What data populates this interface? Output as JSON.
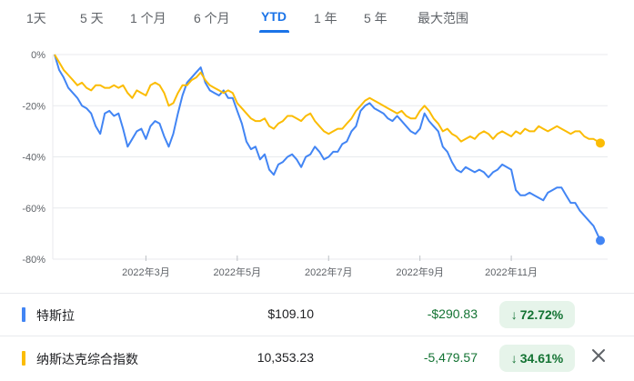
{
  "tabs": [
    {
      "label": "1天"
    },
    {
      "label": "5 天"
    },
    {
      "label": "1 个月"
    },
    {
      "label": "6 个月"
    },
    {
      "label": "YTD"
    },
    {
      "label": "1 年"
    },
    {
      "label": "5 年"
    },
    {
      "label": "最大范围"
    }
  ],
  "active_tab": "YTD",
  "chart_data": {
    "type": "line",
    "title": "",
    "xlabel": "",
    "ylabel": "",
    "x_tick_labels": [
      "2022年3月",
      "2022年5月",
      "2022年7月",
      "2022年9月",
      "2022年11月"
    ],
    "y_tick_labels": [
      "0%",
      "-20%",
      "-40%",
      "-60%",
      "-80%"
    ],
    "y_ticks": [
      0,
      -20,
      -40,
      -60,
      -80
    ],
    "ylim": [
      -80,
      0
    ],
    "x_months_range": [
      1,
      12.95
    ],
    "grid": "horizontal",
    "series": [
      {
        "name": "特斯拉",
        "color": "#4285f4",
        "points": [
          [
            1.0,
            0
          ],
          [
            1.1,
            -6
          ],
          [
            1.2,
            -9
          ],
          [
            1.3,
            -13
          ],
          [
            1.4,
            -15
          ],
          [
            1.5,
            -17
          ],
          [
            1.6,
            -20
          ],
          [
            1.7,
            -21
          ],
          [
            1.8,
            -23
          ],
          [
            1.9,
            -28
          ],
          [
            2.0,
            -31
          ],
          [
            2.1,
            -23
          ],
          [
            2.2,
            -22
          ],
          [
            2.3,
            -24
          ],
          [
            2.4,
            -23
          ],
          [
            2.5,
            -29
          ],
          [
            2.6,
            -36
          ],
          [
            2.7,
            -33
          ],
          [
            2.8,
            -30
          ],
          [
            2.9,
            -29
          ],
          [
            3.0,
            -33
          ],
          [
            3.1,
            -28
          ],
          [
            3.2,
            -26
          ],
          [
            3.3,
            -27
          ],
          [
            3.4,
            -32
          ],
          [
            3.5,
            -36
          ],
          [
            3.6,
            -31
          ],
          [
            3.7,
            -23
          ],
          [
            3.8,
            -16
          ],
          [
            3.9,
            -11
          ],
          [
            4.0,
            -9
          ],
          [
            4.1,
            -7
          ],
          [
            4.2,
            -5
          ],
          [
            4.3,
            -11
          ],
          [
            4.4,
            -14
          ],
          [
            4.5,
            -15
          ],
          [
            4.6,
            -16
          ],
          [
            4.7,
            -14
          ],
          [
            4.8,
            -17
          ],
          [
            4.9,
            -17
          ],
          [
            5.0,
            -22
          ],
          [
            5.1,
            -27
          ],
          [
            5.2,
            -34
          ],
          [
            5.3,
            -37
          ],
          [
            5.4,
            -36
          ],
          [
            5.5,
            -41
          ],
          [
            5.6,
            -39
          ],
          [
            5.7,
            -45
          ],
          [
            5.8,
            -47
          ],
          [
            5.9,
            -43
          ],
          [
            6.0,
            -42
          ],
          [
            6.1,
            -40
          ],
          [
            6.2,
            -39
          ],
          [
            6.3,
            -41
          ],
          [
            6.4,
            -44
          ],
          [
            6.5,
            -40
          ],
          [
            6.6,
            -39
          ],
          [
            6.7,
            -36
          ],
          [
            6.8,
            -38
          ],
          [
            6.9,
            -41
          ],
          [
            7.0,
            -40
          ],
          [
            7.1,
            -38
          ],
          [
            7.2,
            -38
          ],
          [
            7.3,
            -35
          ],
          [
            7.4,
            -34
          ],
          [
            7.5,
            -30
          ],
          [
            7.6,
            -28
          ],
          [
            7.7,
            -22
          ],
          [
            7.8,
            -20
          ],
          [
            7.9,
            -19
          ],
          [
            8.0,
            -21
          ],
          [
            8.1,
            -22
          ],
          [
            8.2,
            -23
          ],
          [
            8.3,
            -25
          ],
          [
            8.4,
            -26
          ],
          [
            8.5,
            -24
          ],
          [
            8.6,
            -26
          ],
          [
            8.7,
            -28
          ],
          [
            8.8,
            -30
          ],
          [
            8.9,
            -31
          ],
          [
            9.0,
            -29
          ],
          [
            9.1,
            -23
          ],
          [
            9.2,
            -26
          ],
          [
            9.3,
            -28
          ],
          [
            9.4,
            -30
          ],
          [
            9.5,
            -36
          ],
          [
            9.6,
            -38
          ],
          [
            9.7,
            -42
          ],
          [
            9.8,
            -45
          ],
          [
            9.9,
            -46
          ],
          [
            10.0,
            -44
          ],
          [
            10.1,
            -45
          ],
          [
            10.2,
            -46
          ],
          [
            10.3,
            -45
          ],
          [
            10.4,
            -46
          ],
          [
            10.5,
            -48
          ],
          [
            10.6,
            -46
          ],
          [
            10.7,
            -45
          ],
          [
            10.8,
            -43
          ],
          [
            10.9,
            -44
          ],
          [
            11.0,
            -45
          ],
          [
            11.1,
            -53
          ],
          [
            11.2,
            -55
          ],
          [
            11.3,
            -55
          ],
          [
            11.4,
            -54
          ],
          [
            11.5,
            -55
          ],
          [
            11.6,
            -56
          ],
          [
            11.7,
            -57
          ],
          [
            11.8,
            -54
          ],
          [
            11.9,
            -53
          ],
          [
            12.0,
            -52
          ],
          [
            12.1,
            -52
          ],
          [
            12.2,
            -55
          ],
          [
            12.3,
            -58
          ],
          [
            12.4,
            -58
          ],
          [
            12.5,
            -61
          ],
          [
            12.6,
            -63
          ],
          [
            12.7,
            -65
          ],
          [
            12.8,
            -67
          ],
          [
            12.95,
            -72.72
          ]
        ],
        "price": "$109.10",
        "change": "-$290.83",
        "percent": "72.72%",
        "direction": "down"
      },
      {
        "name": "纳斯达克综合指数",
        "color": "#fbbc04",
        "points": [
          [
            1.0,
            0
          ],
          [
            1.1,
            -3
          ],
          [
            1.2,
            -6
          ],
          [
            1.3,
            -8
          ],
          [
            1.4,
            -10
          ],
          [
            1.5,
            -12
          ],
          [
            1.6,
            -11
          ],
          [
            1.7,
            -13
          ],
          [
            1.8,
            -14
          ],
          [
            1.9,
            -12
          ],
          [
            2.0,
            -12
          ],
          [
            2.1,
            -13
          ],
          [
            2.2,
            -13
          ],
          [
            2.3,
            -12
          ],
          [
            2.4,
            -13
          ],
          [
            2.5,
            -12
          ],
          [
            2.6,
            -15
          ],
          [
            2.7,
            -17
          ],
          [
            2.8,
            -14
          ],
          [
            2.9,
            -15
          ],
          [
            3.0,
            -16
          ],
          [
            3.1,
            -12
          ],
          [
            3.2,
            -11
          ],
          [
            3.3,
            -12
          ],
          [
            3.4,
            -15
          ],
          [
            3.5,
            -20
          ],
          [
            3.6,
            -19
          ],
          [
            3.7,
            -15
          ],
          [
            3.8,
            -12
          ],
          [
            3.9,
            -12
          ],
          [
            4.0,
            -10
          ],
          [
            4.1,
            -9
          ],
          [
            4.2,
            -7
          ],
          [
            4.3,
            -10
          ],
          [
            4.4,
            -12
          ],
          [
            4.5,
            -13
          ],
          [
            4.6,
            -14
          ],
          [
            4.7,
            -15
          ],
          [
            4.8,
            -14
          ],
          [
            4.9,
            -15
          ],
          [
            5.0,
            -19
          ],
          [
            5.1,
            -21
          ],
          [
            5.2,
            -23
          ],
          [
            5.3,
            -25
          ],
          [
            5.4,
            -26
          ],
          [
            5.5,
            -26
          ],
          [
            5.6,
            -25
          ],
          [
            5.7,
            -28
          ],
          [
            5.8,
            -29
          ],
          [
            5.9,
            -27
          ],
          [
            6.0,
            -26
          ],
          [
            6.1,
            -24
          ],
          [
            6.2,
            -24
          ],
          [
            6.3,
            -25
          ],
          [
            6.4,
            -26
          ],
          [
            6.5,
            -24
          ],
          [
            6.6,
            -23
          ],
          [
            6.7,
            -26
          ],
          [
            6.8,
            -28
          ],
          [
            6.9,
            -30
          ],
          [
            7.0,
            -31
          ],
          [
            7.1,
            -30
          ],
          [
            7.2,
            -29
          ],
          [
            7.3,
            -29
          ],
          [
            7.4,
            -27
          ],
          [
            7.5,
            -25
          ],
          [
            7.6,
            -22
          ],
          [
            7.7,
            -20
          ],
          [
            7.8,
            -18
          ],
          [
            7.9,
            -17
          ],
          [
            8.0,
            -18
          ],
          [
            8.1,
            -19
          ],
          [
            8.2,
            -20
          ],
          [
            8.3,
            -21
          ],
          [
            8.4,
            -22
          ],
          [
            8.5,
            -23
          ],
          [
            8.6,
            -22
          ],
          [
            8.7,
            -24
          ],
          [
            8.8,
            -25
          ],
          [
            8.9,
            -25
          ],
          [
            9.0,
            -22
          ],
          [
            9.1,
            -20
          ],
          [
            9.2,
            -22
          ],
          [
            9.3,
            -25
          ],
          [
            9.4,
            -27
          ],
          [
            9.5,
            -30
          ],
          [
            9.6,
            -29
          ],
          [
            9.7,
            -31
          ],
          [
            9.8,
            -32
          ],
          [
            9.9,
            -34
          ],
          [
            10.0,
            -33
          ],
          [
            10.1,
            -32
          ],
          [
            10.2,
            -33
          ],
          [
            10.3,
            -31
          ],
          [
            10.4,
            -30
          ],
          [
            10.5,
            -31
          ],
          [
            10.6,
            -33
          ],
          [
            10.7,
            -31
          ],
          [
            10.8,
            -30
          ],
          [
            10.9,
            -31
          ],
          [
            11.0,
            -32
          ],
          [
            11.1,
            -30
          ],
          [
            11.2,
            -31
          ],
          [
            11.3,
            -29
          ],
          [
            11.4,
            -30
          ],
          [
            11.5,
            -30
          ],
          [
            11.6,
            -28
          ],
          [
            11.7,
            -29
          ],
          [
            11.8,
            -30
          ],
          [
            11.9,
            -29
          ],
          [
            12.0,
            -28
          ],
          [
            12.1,
            -29
          ],
          [
            12.2,
            -30
          ],
          [
            12.3,
            -31
          ],
          [
            12.4,
            -30
          ],
          [
            12.5,
            -30
          ],
          [
            12.6,
            -32
          ],
          [
            12.7,
            -33
          ],
          [
            12.8,
            -33
          ],
          [
            12.95,
            -34.61
          ]
        ],
        "price": "10,353.23",
        "change": "-5,479.57",
        "percent": "34.61%",
        "direction": "down"
      }
    ]
  },
  "close_icon": "close-icon"
}
